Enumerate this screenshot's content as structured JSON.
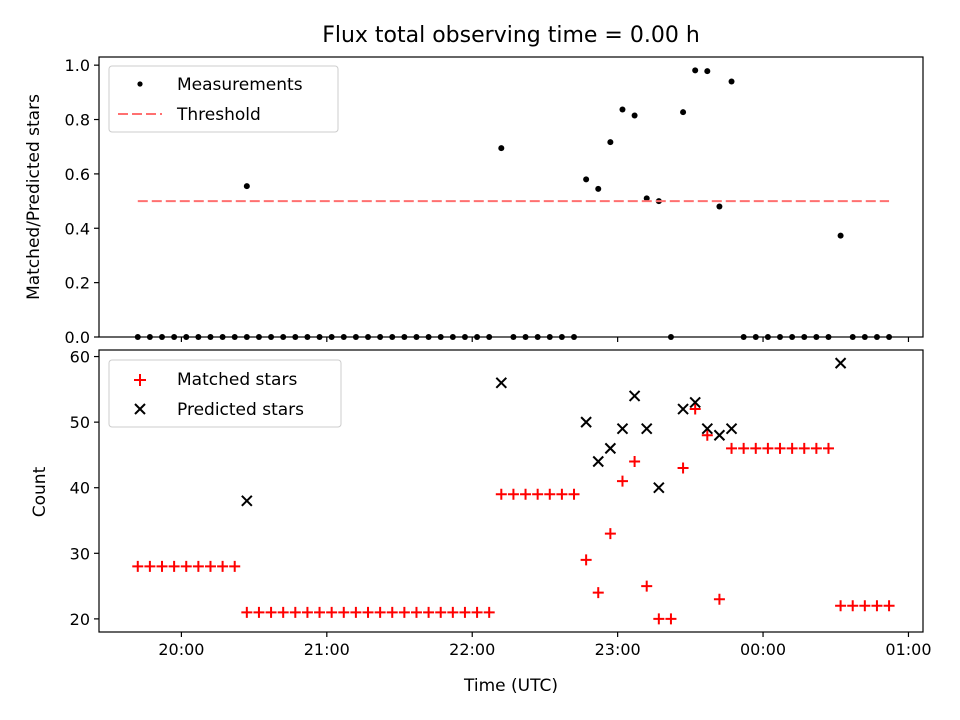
{
  "title": "Flux total observing time = 0.00 h",
  "chart_data": [
    {
      "type": "scatter",
      "title": "Flux total observing time = 0.00 h",
      "xlabel": "",
      "ylabel": "Matched/Predicted stars",
      "x_axis": "time",
      "xlim": [
        "19:26",
        "01:06"
      ],
      "ylim": [
        0,
        1.03
      ],
      "x_ticks": [
        "20:00",
        "21:00",
        "22:00",
        "23:00",
        "00:00",
        "01:00"
      ],
      "x_tick_labels_shown": false,
      "y_ticks": [
        "0.0",
        "0.2",
        "0.4",
        "0.6",
        "0.8",
        "1.0"
      ],
      "grid": false,
      "legend": "upper left",
      "series": [
        {
          "name": "Measurements",
          "marker": "dot",
          "color": "#000000",
          "points": [
            [
              "19:42",
              0
            ],
            [
              "19:47",
              0
            ],
            [
              "19:52",
              0
            ],
            [
              "19:57",
              0
            ],
            [
              "20:02",
              0
            ],
            [
              "20:07",
              0
            ],
            [
              "20:12",
              0
            ],
            [
              "20:17",
              0
            ],
            [
              "20:22",
              0
            ],
            [
              "20:27",
              0
            ],
            [
              "20:27",
              0.555
            ],
            [
              "20:32",
              0
            ],
            [
              "20:37",
              0
            ],
            [
              "20:42",
              0
            ],
            [
              "20:47",
              0
            ],
            [
              "20:52",
              0
            ],
            [
              "20:57",
              0
            ],
            [
              "21:02",
              0
            ],
            [
              "21:07",
              0
            ],
            [
              "21:12",
              0
            ],
            [
              "21:17",
              0
            ],
            [
              "21:22",
              0
            ],
            [
              "21:27",
              0
            ],
            [
              "21:32",
              0
            ],
            [
              "21:37",
              0
            ],
            [
              "21:42",
              0
            ],
            [
              "21:47",
              0
            ],
            [
              "21:52",
              0
            ],
            [
              "21:57",
              0
            ],
            [
              "22:02",
              0
            ],
            [
              "22:07",
              0
            ],
            [
              "22:12",
              0.695
            ],
            [
              "22:17",
              0
            ],
            [
              "22:22",
              0
            ],
            [
              "22:27",
              0
            ],
            [
              "22:32",
              0
            ],
            [
              "22:37",
              0
            ],
            [
              "22:42",
              0
            ],
            [
              "22:47",
              0.58
            ],
            [
              "22:52",
              0.545
            ],
            [
              "22:57",
              0.717
            ],
            [
              "23:02",
              0.837
            ],
            [
              "23:07",
              0.815
            ],
            [
              "23:12",
              0.51
            ],
            [
              "23:17",
              0.5
            ],
            [
              "23:22",
              0
            ],
            [
              "23:27",
              0.827
            ],
            [
              "23:32",
              0.981
            ],
            [
              "23:37",
              0.978
            ],
            [
              "23:42",
              0.48
            ],
            [
              "23:47",
              0.94
            ],
            [
              "23:52",
              0
            ],
            [
              "23:57",
              0
            ],
            [
              "00:02",
              0
            ],
            [
              "00:07",
              0
            ],
            [
              "00:12",
              0
            ],
            [
              "00:17",
              0
            ],
            [
              "00:22",
              0
            ],
            [
              "00:27",
              0
            ],
            [
              "00:32",
              0.373
            ],
            [
              "00:37",
              0
            ],
            [
              "00:42",
              0
            ],
            [
              "00:47",
              0
            ],
            [
              "00:52",
              0
            ]
          ]
        },
        {
          "name": "Threshold",
          "style": "dashed-line",
          "color": "#ff7070",
          "points": [
            [
              "19:42",
              0.5
            ],
            [
              "00:52",
              0.5
            ]
          ]
        }
      ]
    },
    {
      "type": "scatter",
      "title": "",
      "xlabel": "Time (UTC)",
      "ylabel": "Count",
      "x_axis": "time",
      "xlim": [
        "19:26",
        "01:06"
      ],
      "ylim": [
        18,
        61
      ],
      "x_ticks": [
        "20:00",
        "21:00",
        "22:00",
        "23:00",
        "00:00",
        "01:00"
      ],
      "y_ticks": [
        "20",
        "30",
        "40",
        "50",
        "60"
      ],
      "grid": false,
      "legend": "upper left",
      "series": [
        {
          "name": "Matched stars",
          "marker": "plus",
          "color": "#ff0000",
          "points": [
            [
              "19:42",
              28
            ],
            [
              "19:47",
              28
            ],
            [
              "19:52",
              28
            ],
            [
              "19:57",
              28
            ],
            [
              "20:02",
              28
            ],
            [
              "20:07",
              28
            ],
            [
              "20:12",
              28
            ],
            [
              "20:17",
              28
            ],
            [
              "20:22",
              28
            ],
            [
              "20:27",
              21
            ],
            [
              "20:32",
              21
            ],
            [
              "20:37",
              21
            ],
            [
              "20:42",
              21
            ],
            [
              "20:47",
              21
            ],
            [
              "20:52",
              21
            ],
            [
              "20:57",
              21
            ],
            [
              "21:02",
              21
            ],
            [
              "21:07",
              21
            ],
            [
              "21:12",
              21
            ],
            [
              "21:17",
              21
            ],
            [
              "21:22",
              21
            ],
            [
              "21:27",
              21
            ],
            [
              "21:32",
              21
            ],
            [
              "21:37",
              21
            ],
            [
              "21:42",
              21
            ],
            [
              "21:47",
              21
            ],
            [
              "21:52",
              21
            ],
            [
              "21:57",
              21
            ],
            [
              "22:02",
              21
            ],
            [
              "22:07",
              21
            ],
            [
              "22:12",
              39
            ],
            [
              "22:17",
              39
            ],
            [
              "22:22",
              39
            ],
            [
              "22:27",
              39
            ],
            [
              "22:32",
              39
            ],
            [
              "22:37",
              39
            ],
            [
              "22:42",
              39
            ],
            [
              "22:47",
              29
            ],
            [
              "22:52",
              24
            ],
            [
              "22:57",
              33
            ],
            [
              "23:02",
              41
            ],
            [
              "23:07",
              44
            ],
            [
              "23:12",
              25
            ],
            [
              "23:17",
              20
            ],
            [
              "23:22",
              20
            ],
            [
              "23:27",
              43
            ],
            [
              "23:32",
              52
            ],
            [
              "23:37",
              48
            ],
            [
              "23:42",
              23
            ],
            [
              "23:47",
              46
            ],
            [
              "23:52",
              46
            ],
            [
              "23:57",
              46
            ],
            [
              "00:02",
              46
            ],
            [
              "00:07",
              46
            ],
            [
              "00:12",
              46
            ],
            [
              "00:17",
              46
            ],
            [
              "00:22",
              46
            ],
            [
              "00:27",
              46
            ],
            [
              "00:32",
              22
            ],
            [
              "00:37",
              22
            ],
            [
              "00:42",
              22
            ],
            [
              "00:47",
              22
            ],
            [
              "00:52",
              22
            ]
          ]
        },
        {
          "name": "Predicted stars",
          "marker": "x",
          "color": "#000000",
          "points": [
            [
              "20:27",
              38
            ],
            [
              "22:12",
              56
            ],
            [
              "22:47",
              50
            ],
            [
              "22:52",
              44
            ],
            [
              "22:57",
              46
            ],
            [
              "23:02",
              49
            ],
            [
              "23:07",
              54
            ],
            [
              "23:12",
              49
            ],
            [
              "23:17",
              40
            ],
            [
              "23:27",
              52
            ],
            [
              "23:32",
              53
            ],
            [
              "23:37",
              49
            ],
            [
              "23:42",
              48
            ],
            [
              "23:47",
              49
            ],
            [
              "00:32",
              59
            ]
          ]
        }
      ]
    }
  ]
}
